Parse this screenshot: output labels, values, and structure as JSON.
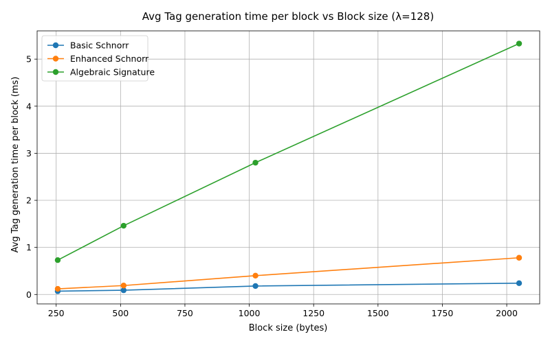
{
  "chart_data": {
    "type": "line",
    "title": "Avg Tag generation time per block vs Block size (λ=128)",
    "xlabel": "Block size (bytes)",
    "ylabel": "Avg Tag generation time per block (ms)",
    "x": [
      256,
      512,
      1024,
      2048
    ],
    "xlim": [
      176,
      2128
    ],
    "ylim": [
      -0.2,
      5.6
    ],
    "xticks": [
      250,
      500,
      750,
      1000,
      1250,
      1500,
      1750,
      2000
    ],
    "yticks": [
      0,
      1,
      2,
      3,
      4,
      5
    ],
    "grid": true,
    "legend_position": "top-left",
    "series": [
      {
        "name": "Basic Schnorr",
        "color": "#1f77b4",
        "values": [
          0.07,
          0.09,
          0.18,
          0.24
        ]
      },
      {
        "name": "Enhanced Schnorr",
        "color": "#ff7f0e",
        "values": [
          0.12,
          0.19,
          0.4,
          0.78
        ]
      },
      {
        "name": "Algebraic Signature",
        "color": "#2ca02c",
        "values": [
          0.73,
          1.46,
          2.8,
          5.33
        ]
      }
    ]
  }
}
